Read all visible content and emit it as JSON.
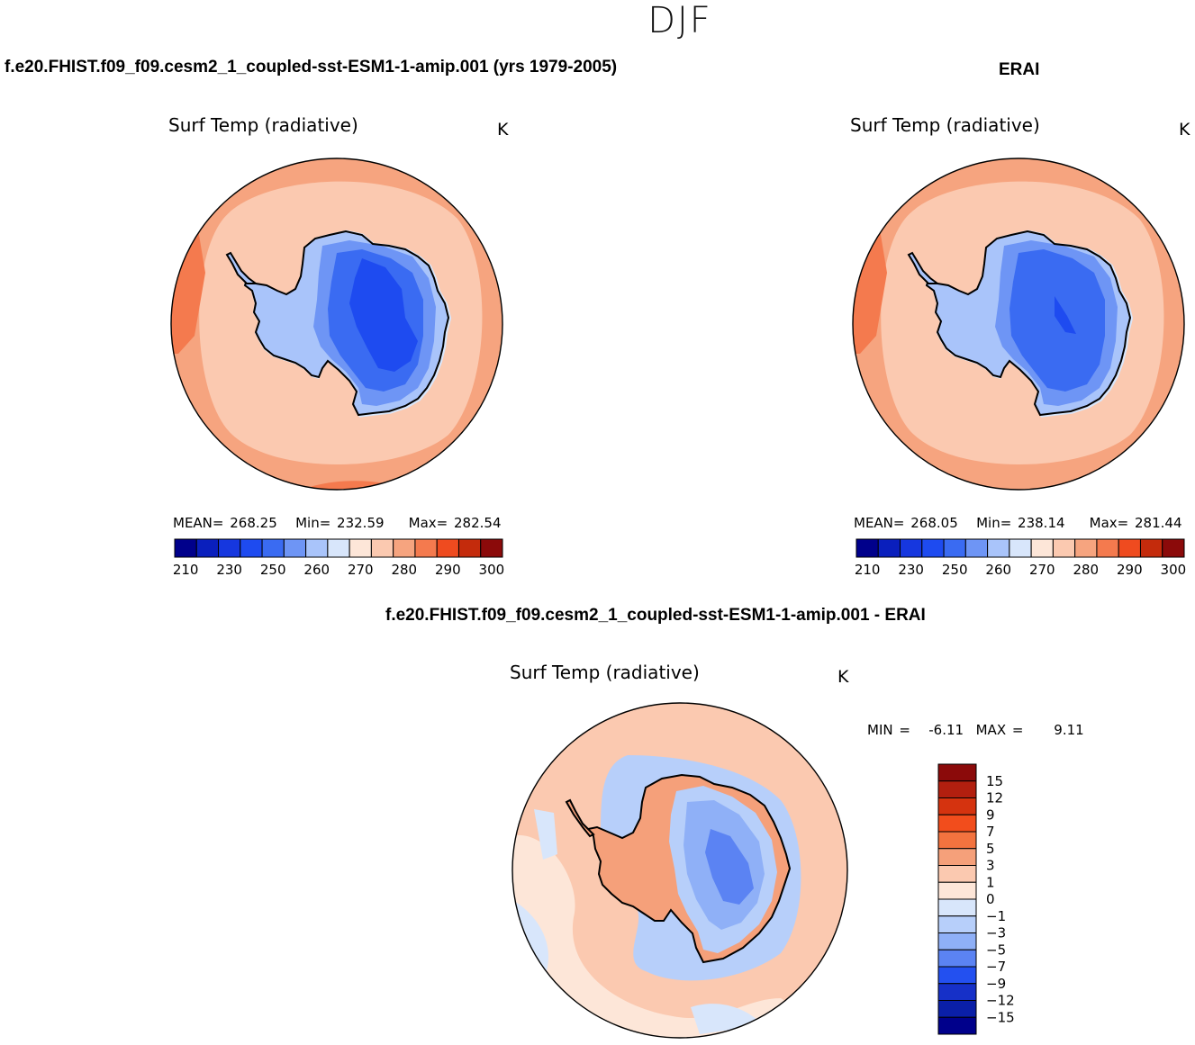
{
  "season": "DJF",
  "panels": [
    {
      "case_title": "f.e20.FHIST.f09_f09.cesm2_1_coupled-sst-ESM1-1-amip.001 (yrs 1979-2005)",
      "plot_title": "Surf Temp (radiative)",
      "units": "K",
      "stats": {
        "mean_label": "MEAN=",
        "mean": "268.25",
        "min_label": "Min=",
        "min": "232.59",
        "max_label": "Max=",
        "max": "282.54"
      }
    },
    {
      "case_title": "ERAI",
      "plot_title": "Surf Temp (radiative)",
      "units": "K",
      "stats": {
        "mean_label": "MEAN=",
        "mean": "268.05",
        "min_label": "Min=",
        "min": "238.14",
        "max_label": "Max=",
        "max": "281.44"
      }
    }
  ],
  "abs_colorbar": {
    "colors": [
      "#00008b",
      "#0a1fbd",
      "#1637df",
      "#1e4bf0",
      "#3a6bf2",
      "#6e95f5",
      "#a9c4fa",
      "#d8e6fb",
      "#fde6d8",
      "#fbc9b0",
      "#f6a47f",
      "#f47a4e",
      "#ef4b1f",
      "#c42b0c",
      "#8b0a0a"
    ],
    "tick_labels": [
      "210",
      "230",
      "250",
      "260",
      "270",
      "280",
      "290",
      "300"
    ]
  },
  "diff": {
    "title": "f.e20.FHIST.f09_f09.cesm2_1_coupled-sst-ESM1-1-amip.001 - ERAI",
    "plot_title": "Surf Temp (radiative)",
    "units": "K",
    "stats": {
      "min_label": "MIN =",
      "min": "-6.11",
      "max_label": "MAX =",
      "max": "9.11"
    },
    "colorbar": {
      "colors": [
        "#8b0a0a",
        "#b21f0f",
        "#d5330f",
        "#f24d1c",
        "#f3733f",
        "#f5a07a",
        "#fbc9b0",
        "#fde6d8",
        "#d8e6fb",
        "#b7cffa",
        "#8fb0f7",
        "#5b83f3",
        "#2350f0",
        "#1630c8",
        "#0a1fa8",
        "#00008b"
      ],
      "labels": [
        "15",
        "12",
        "9",
        "7",
        "5",
        "3",
        "1",
        "0",
        "−1",
        "−3",
        "−5",
        "−7",
        "−9",
        "−12",
        "−15"
      ]
    }
  },
  "map_colors": {
    "outer": "#f6a47f",
    "mid": "#fbc9b0",
    "ice_edge": "#d8e6fb",
    "ice1": "#a9c4fa",
    "ice2": "#6e95f5",
    "ice3": "#3a6bf2",
    "ice4": "#1e4bf0",
    "diff_bg": "#fbc9b0",
    "diff_light": "#fde6d8",
    "diff_pale_blue": "#d8e6fb",
    "diff_blue1": "#b7cffa",
    "diff_blue2": "#8fb0f7",
    "diff_blue3": "#5b83f3",
    "diff_red": "#f5a07a"
  }
}
